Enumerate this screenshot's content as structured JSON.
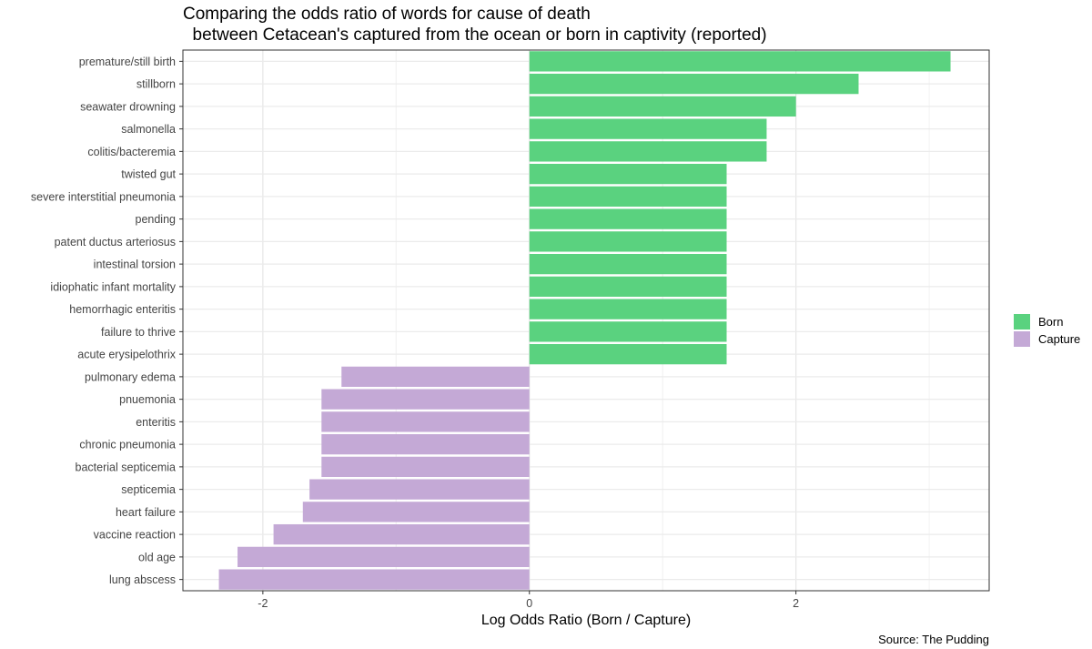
{
  "chart_data": {
    "type": "bar",
    "orientation": "horizontal",
    "title_line1": "Comparing the odds ratio of words for cause of death",
    "title_line2": "  between Cetacean's captured from the ocean or born in captivity (reported)",
    "xlabel": "Log Odds Ratio (Born / Capture)",
    "caption": "Source: The Pudding",
    "xlim": [
      -2.6,
      3.45
    ],
    "xticks": [
      -2,
      0,
      2
    ],
    "grid": true,
    "legend": {
      "placement": "right",
      "entries": [
        {
          "label": "Born",
          "color": "#5ad27f"
        },
        {
          "label": "Capture",
          "color": "#c4a9d6"
        }
      ]
    },
    "bars": [
      {
        "label": "premature/still birth",
        "value": 3.16,
        "group": "Born"
      },
      {
        "label": "stillborn",
        "value": 2.47,
        "group": "Born"
      },
      {
        "label": "seawater drowning",
        "value": 2.0,
        "group": "Born"
      },
      {
        "label": "salmonella",
        "value": 1.78,
        "group": "Born"
      },
      {
        "label": "colitis/bacteremia",
        "value": 1.78,
        "group": "Born"
      },
      {
        "label": "twisted gut",
        "value": 1.48,
        "group": "Born"
      },
      {
        "label": "severe interstitial pneumonia",
        "value": 1.48,
        "group": "Born"
      },
      {
        "label": "pending",
        "value": 1.48,
        "group": "Born"
      },
      {
        "label": "patent ductus arteriosus",
        "value": 1.48,
        "group": "Born"
      },
      {
        "label": "intestinal torsion",
        "value": 1.48,
        "group": "Born"
      },
      {
        "label": "idiophatic infant mortality",
        "value": 1.48,
        "group": "Born"
      },
      {
        "label": "hemorrhagic enteritis",
        "value": 1.48,
        "group": "Born"
      },
      {
        "label": "failure to thrive",
        "value": 1.48,
        "group": "Born"
      },
      {
        "label": "acute erysipelothrix",
        "value": 1.48,
        "group": "Born"
      },
      {
        "label": "pulmonary edema",
        "value": -1.41,
        "group": "Capture"
      },
      {
        "label": "pnuemonia",
        "value": -1.56,
        "group": "Capture"
      },
      {
        "label": "enteritis",
        "value": -1.56,
        "group": "Capture"
      },
      {
        "label": "chronic pneumonia",
        "value": -1.56,
        "group": "Capture"
      },
      {
        "label": "bacterial septicemia",
        "value": -1.56,
        "group": "Capture"
      },
      {
        "label": "septicemia",
        "value": -1.65,
        "group": "Capture"
      },
      {
        "label": "heart failure",
        "value": -1.7,
        "group": "Capture"
      },
      {
        "label": "vaccine reaction",
        "value": -1.92,
        "group": "Capture"
      },
      {
        "label": "old age",
        "value": -2.19,
        "group": "Capture"
      },
      {
        "label": "lung abscess",
        "value": -2.33,
        "group": "Capture"
      }
    ]
  }
}
